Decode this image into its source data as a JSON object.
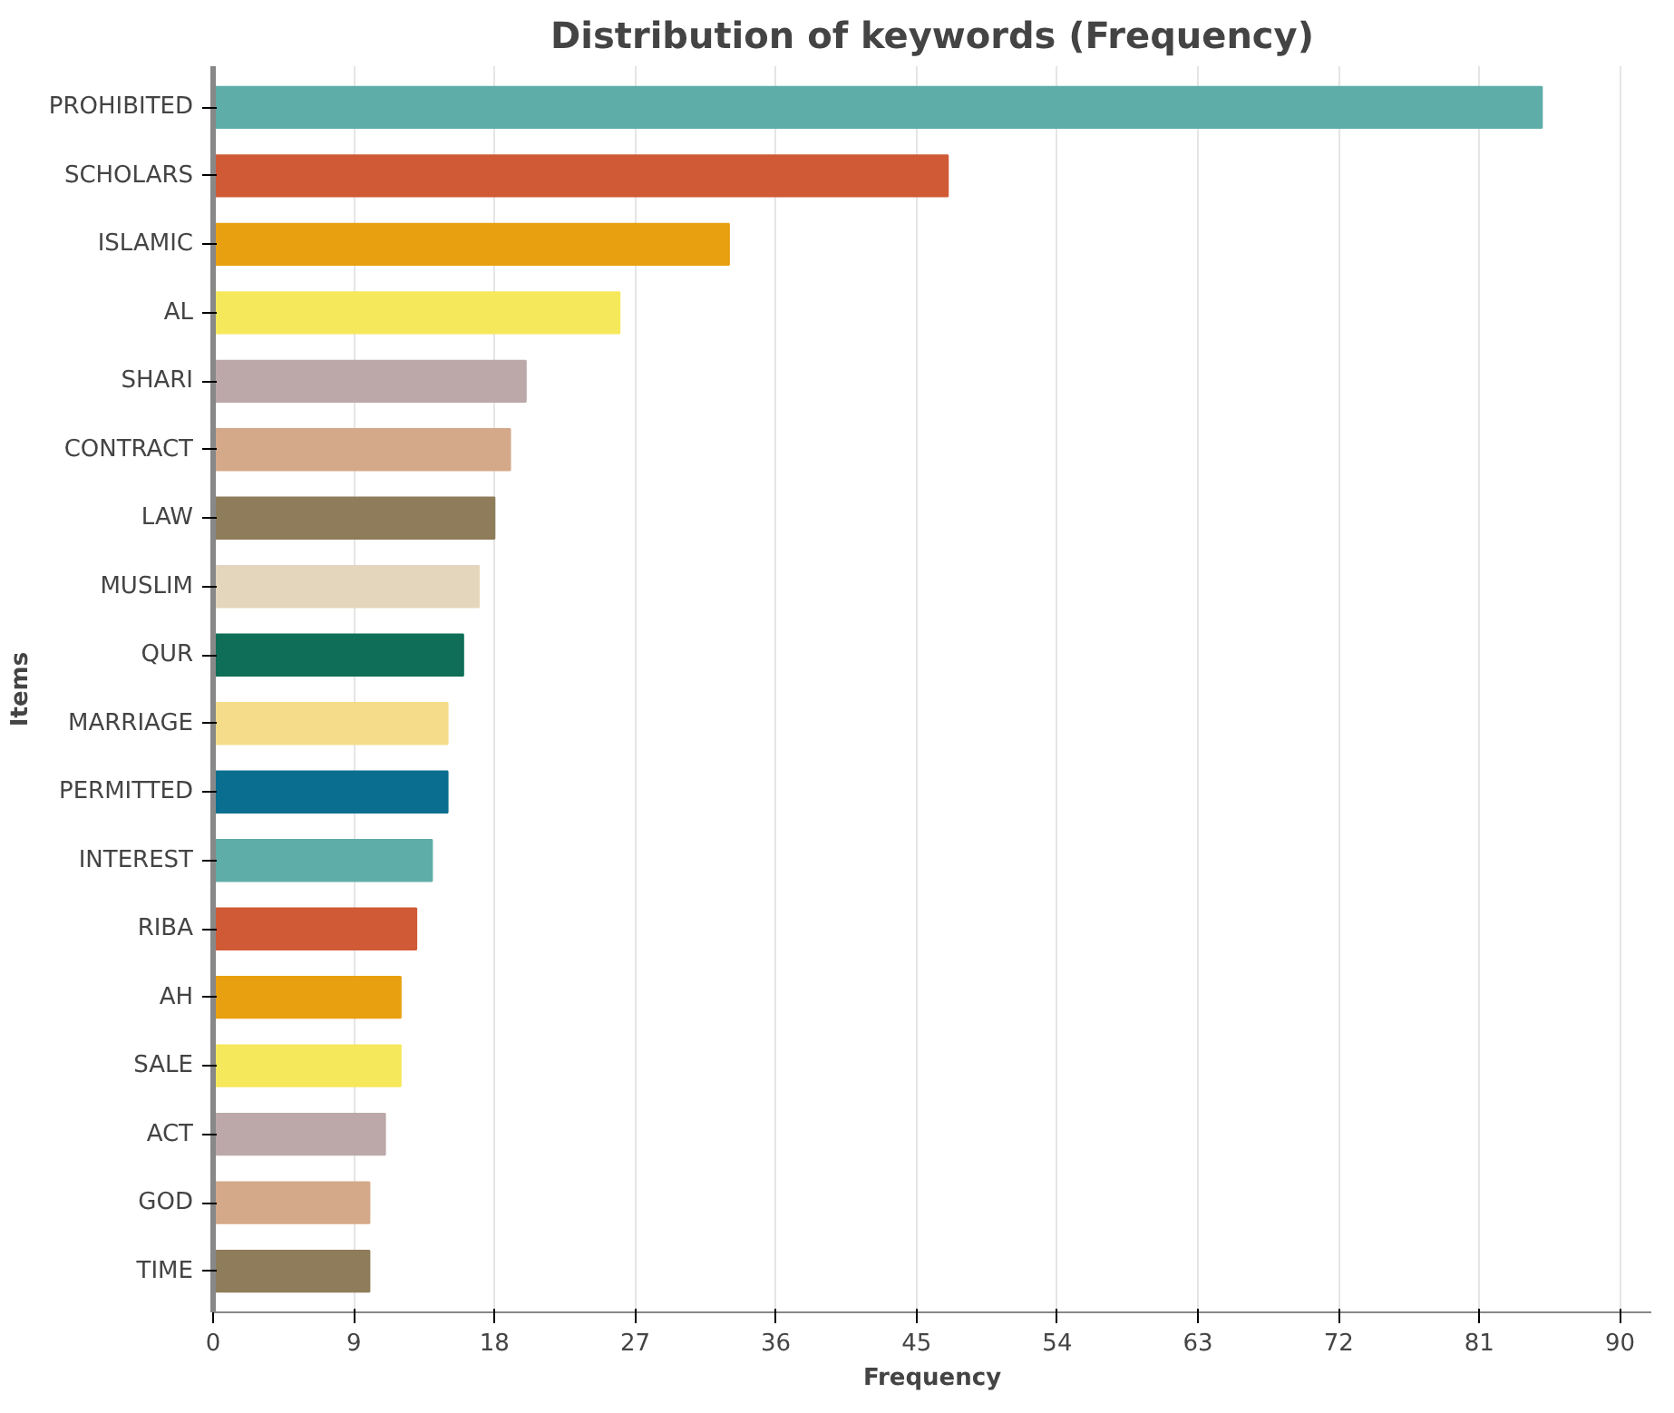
{
  "chart_data": {
    "type": "bar",
    "orientation": "horizontal",
    "title": "Distribution of keywords (Frequency)",
    "xlabel": "Frequency",
    "ylabel": "Items",
    "categories": [
      "PROHIBITED",
      "SCHOLARS",
      "ISLAMIC",
      "AL",
      "SHARI",
      "CONTRACT",
      "LAW",
      "MUSLIM",
      "QUR",
      "MARRIAGE",
      "PERMITTED",
      "INTEREST",
      "RIBA",
      "AH",
      "SALE",
      "ACT",
      "GOD",
      "TIME"
    ],
    "values": [
      85,
      47,
      33,
      26,
      20,
      19,
      18,
      17,
      16,
      15,
      15,
      14,
      13,
      12,
      12,
      11,
      10,
      10
    ],
    "colors": [
      "#5fada8",
      "#d05a36",
      "#e8a010",
      "#f5e85a",
      "#bca8a8",
      "#d4a98a",
      "#8e7c5a",
      "#e3d6bd",
      "#0e6e57",
      "#f5dc8a",
      "#0a6e91",
      "#5fada8",
      "#d05a36",
      "#e8a010",
      "#f5e85a",
      "#bca8a8",
      "#d4a98a",
      "#8e7c5a"
    ],
    "xlim": [
      0,
      92
    ],
    "xticks": [
      0,
      9,
      18,
      27,
      36,
      45,
      54,
      63,
      72,
      81,
      90
    ],
    "grid": "x"
  }
}
